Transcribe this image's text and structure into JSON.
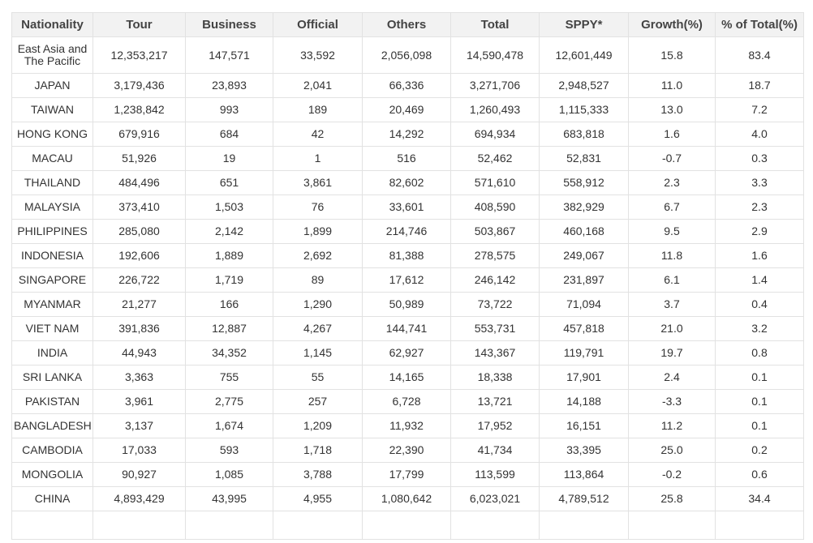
{
  "table": {
    "header": [
      "Nationality",
      "Tour",
      "Business",
      "Official",
      "Others",
      "Total",
      "SPPY*",
      "Growth(%)",
      "% of Total(%)"
    ],
    "rows": [
      [
        "East Asia and The Pacific",
        "12,353,217",
        "147,571",
        "33,592",
        "2,056,098",
        "14,590,478",
        "12,601,449",
        "15.8",
        "83.4"
      ],
      [
        "JAPAN",
        "3,179,436",
        "23,893",
        "2,041",
        "66,336",
        "3,271,706",
        "2,948,527",
        "11.0",
        "18.7"
      ],
      [
        "TAIWAN",
        "1,238,842",
        "993",
        "189",
        "20,469",
        "1,260,493",
        "1,115,333",
        "13.0",
        "7.2"
      ],
      [
        "HONG KONG",
        "679,916",
        "684",
        "42",
        "14,292",
        "694,934",
        "683,818",
        "1.6",
        "4.0"
      ],
      [
        "MACAU",
        "51,926",
        "19",
        "1",
        "516",
        "52,462",
        "52,831",
        "-0.7",
        "0.3"
      ],
      [
        "THAILAND",
        "484,496",
        "651",
        "3,861",
        "82,602",
        "571,610",
        "558,912",
        "2.3",
        "3.3"
      ],
      [
        "MALAYSIA",
        "373,410",
        "1,503",
        "76",
        "33,601",
        "408,590",
        "382,929",
        "6.7",
        "2.3"
      ],
      [
        "PHILIPPINES",
        "285,080",
        "2,142",
        "1,899",
        "214,746",
        "503,867",
        "460,168",
        "9.5",
        "2.9"
      ],
      [
        "INDONESIA",
        "192,606",
        "1,889",
        "2,692",
        "81,388",
        "278,575",
        "249,067",
        "11.8",
        "1.6"
      ],
      [
        "SINGAPORE",
        "226,722",
        "1,719",
        "89",
        "17,612",
        "246,142",
        "231,897",
        "6.1",
        "1.4"
      ],
      [
        "MYANMAR",
        "21,277",
        "166",
        "1,290",
        "50,989",
        "73,722",
        "71,094",
        "3.7",
        "0.4"
      ],
      [
        "VIET NAM",
        "391,836",
        "12,887",
        "4,267",
        "144,741",
        "553,731",
        "457,818",
        "21.0",
        "3.2"
      ],
      [
        "INDIA",
        "44,943",
        "34,352",
        "1,145",
        "62,927",
        "143,367",
        "119,791",
        "19.7",
        "0.8"
      ],
      [
        "SRI LANKA",
        "3,363",
        "755",
        "55",
        "14,165",
        "18,338",
        "17,901",
        "2.4",
        "0.1"
      ],
      [
        "PAKISTAN",
        "3,961",
        "2,775",
        "257",
        "6,728",
        "13,721",
        "14,188",
        "-3.3",
        "0.1"
      ],
      [
        "BANGLADESH",
        "3,137",
        "1,674",
        "1,209",
        "11,932",
        "17,952",
        "16,151",
        "11.2",
        "0.1"
      ],
      [
        "CAMBODIA",
        "17,033",
        "593",
        "1,718",
        "22,390",
        "41,734",
        "33,395",
        "25.0",
        "0.2"
      ],
      [
        "MONGOLIA",
        "90,927",
        "1,085",
        "3,788",
        "17,799",
        "113,599",
        "113,864",
        "-0.2",
        "0.6"
      ],
      [
        "CHINA",
        "4,893,429",
        "43,995",
        "4,955",
        "1,080,642",
        "6,023,021",
        "4,789,512",
        "25.8",
        "34.4"
      ]
    ]
  }
}
